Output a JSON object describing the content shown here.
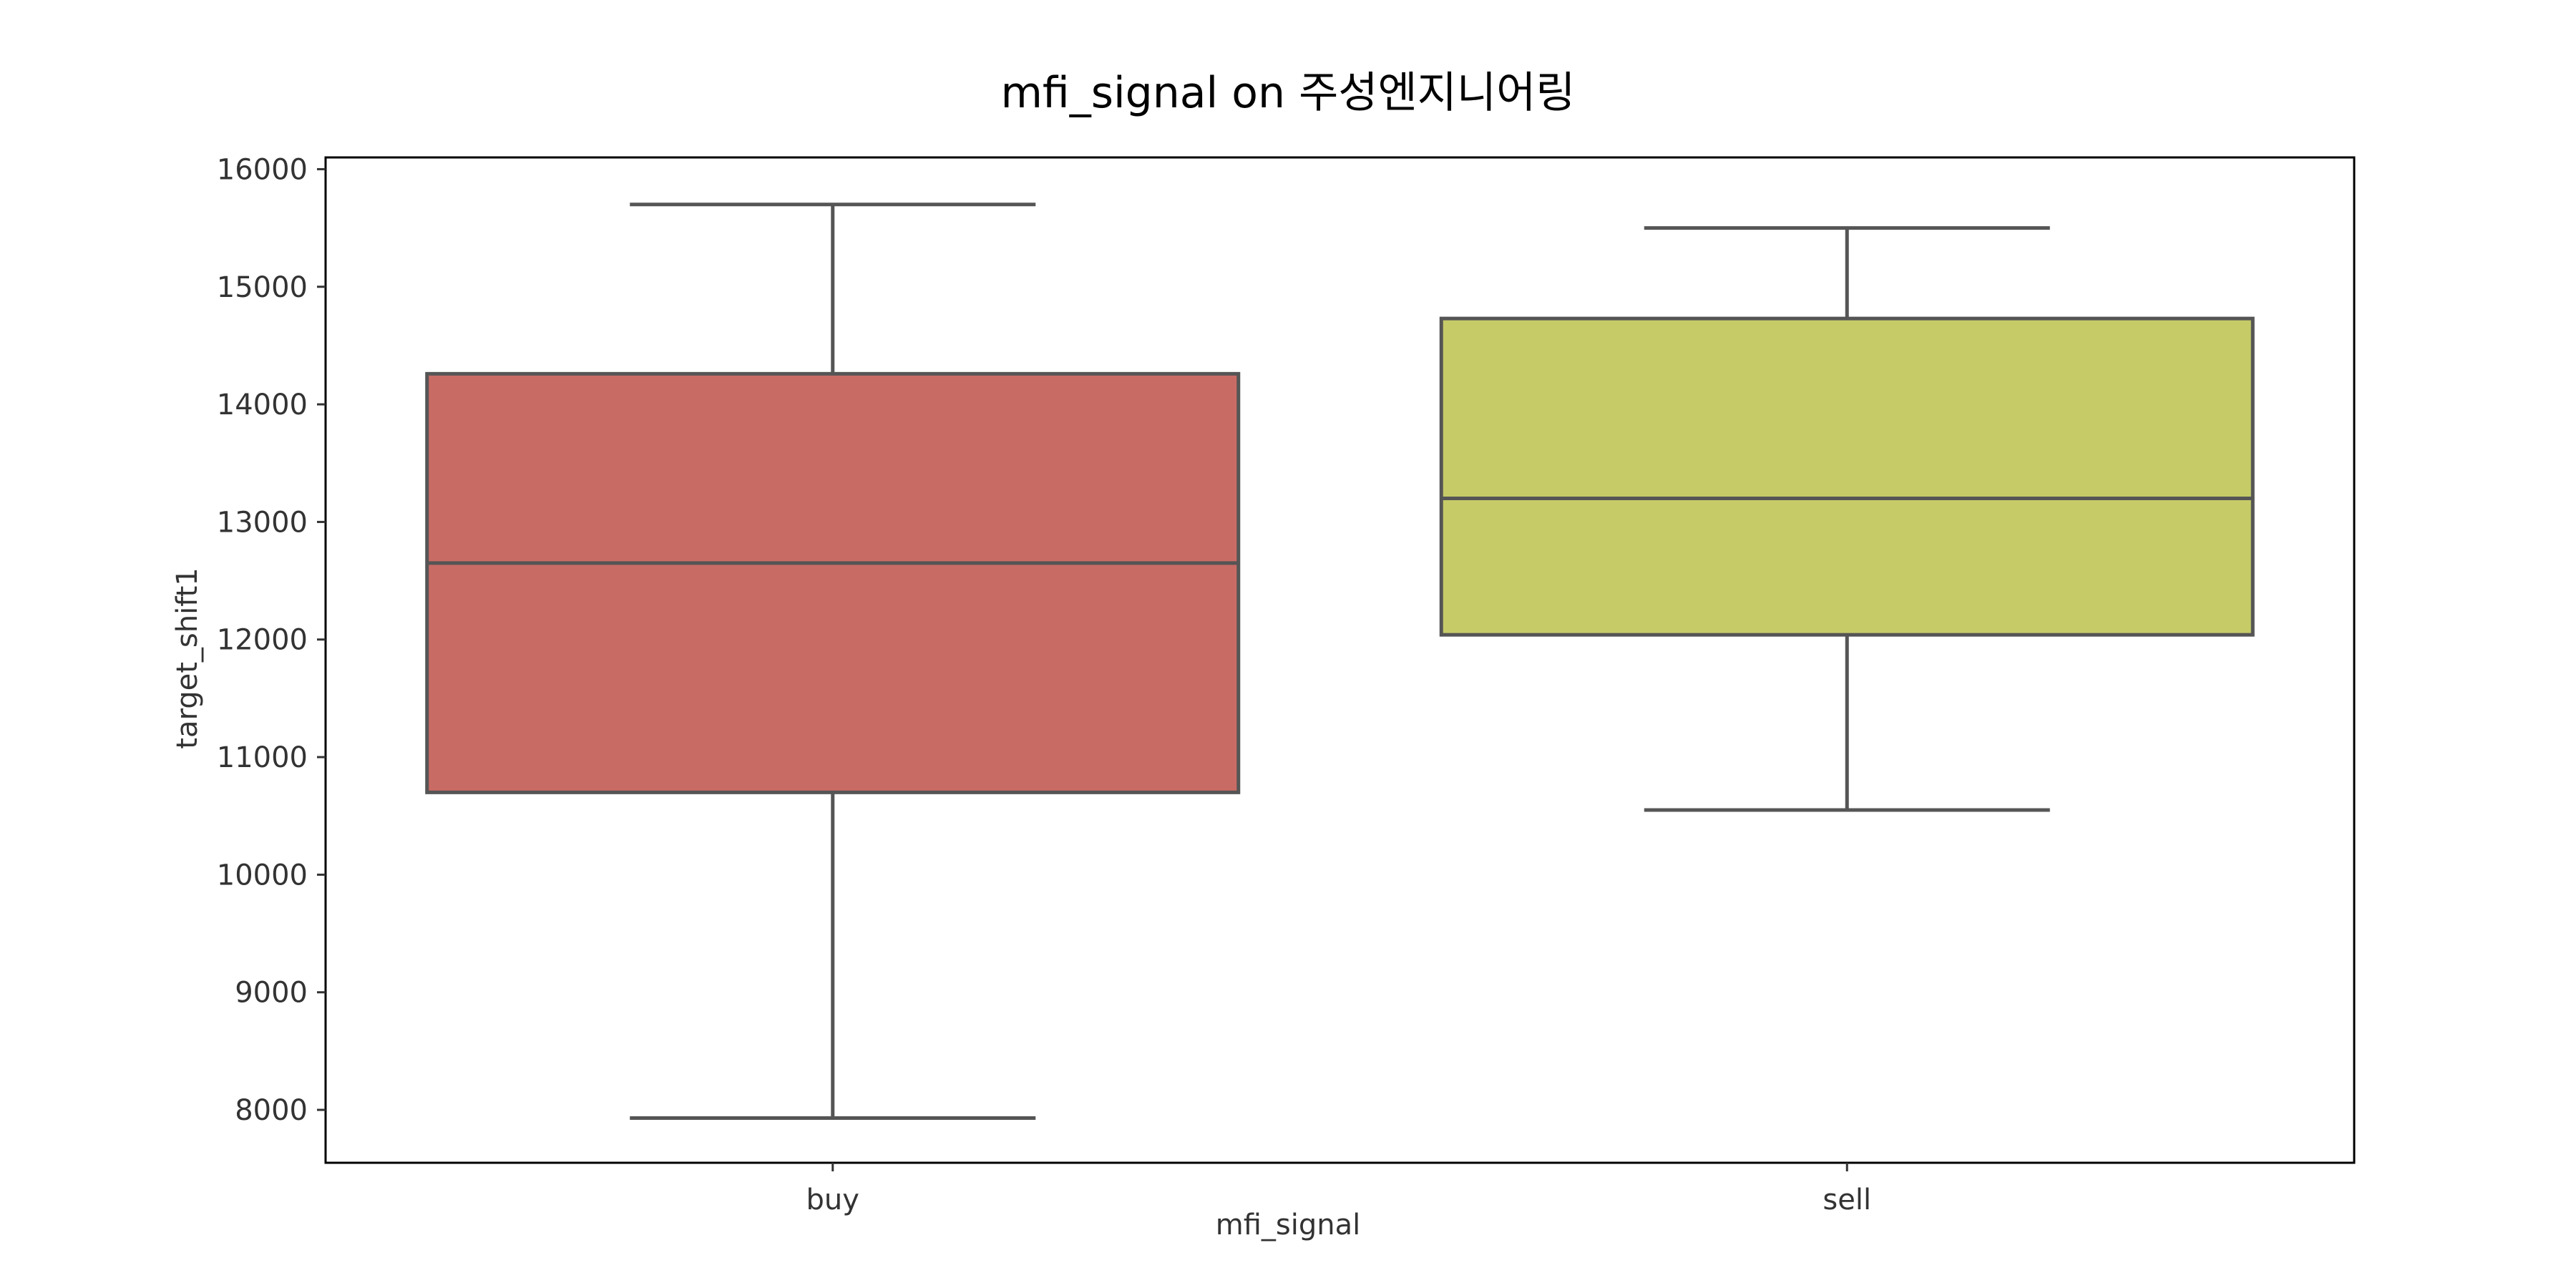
{
  "chart_data": {
    "type": "box",
    "title": "mfi_signal on 주성엔지니어링",
    "xlabel": "mfi_signal",
    "ylabel": "target_shift1",
    "ylim": [
      7550,
      16100
    ],
    "yticks": [
      8000,
      9000,
      10000,
      11000,
      12000,
      13000,
      14000,
      15000,
      16000
    ],
    "categories": [
      "buy",
      "sell"
    ],
    "boxes": [
      {
        "category": "buy",
        "whisker_low": 7930,
        "q1": 10700,
        "median": 12650,
        "q3": 14260,
        "whisker_high": 15700,
        "color": "#c96b65"
      },
      {
        "category": "sell",
        "whisker_low": 10550,
        "q1": 12040,
        "median": 13200,
        "q3": 14730,
        "whisker_high": 15500,
        "color": "#c6cb68"
      }
    ],
    "line_color": "#555555",
    "grid": false,
    "legend": "none"
  }
}
